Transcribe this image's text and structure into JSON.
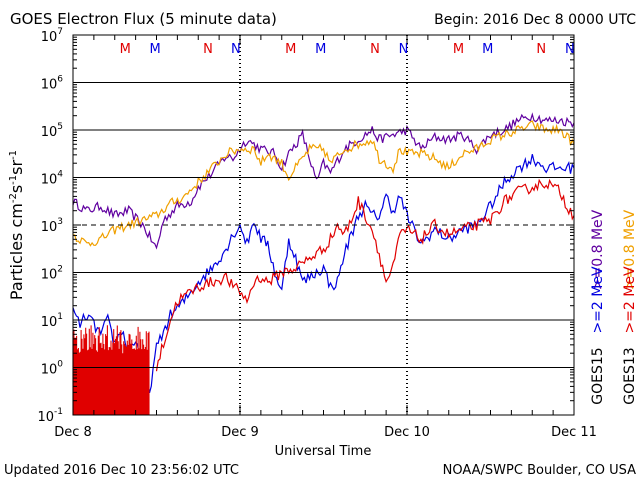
{
  "chart_data": {
    "type": "line",
    "title": "GOES Electron Flux (5 minute data)",
    "begin_label": "Begin: 2016 Dec 8 0000 UTC",
    "xlabel": "Universal Time",
    "ylabel_main": "Particles cm",
    "ylabel_sup1": "-2",
    "ylabel_mid1": "s",
    "ylabel_sup2": "-1",
    "ylabel_mid2": "sr",
    "ylabel_sup3": "-1",
    "footer_left": "Updated 2016 Dec 10 23:56:02 UTC",
    "footer_right": "NOAA/SWPC Boulder, CO USA",
    "x_range_hours": [
      0,
      72
    ],
    "x_ticks": [
      {
        "label": "Dec 8",
        "hour": 0
      },
      {
        "label": "Dec 9",
        "hour": 24
      },
      {
        "label": "Dec 10",
        "hour": 48
      },
      {
        "label": "Dec 11",
        "hour": 72
      }
    ],
    "y_log_range": [
      -1,
      7
    ],
    "y_ticks": [
      {
        "base": "10",
        "exp": "7"
      },
      {
        "base": "10",
        "exp": "6"
      },
      {
        "base": "10",
        "exp": "5"
      },
      {
        "base": "10",
        "exp": "4"
      },
      {
        "base": "10",
        "exp": "3"
      },
      {
        "base": "10",
        "exp": "2"
      },
      {
        "base": "10",
        "exp": "1"
      },
      {
        "base": "10",
        "exp": "0"
      },
      {
        "base": "10",
        "exp": "-1"
      }
    ],
    "reference_lines": [
      6,
      5,
      4,
      2,
      1,
      0
    ],
    "dashed_line": 3,
    "markers": [
      {
        "label": "M",
        "hour": 7.5,
        "color": "#e00000"
      },
      {
        "label": "M",
        "hour": 11.8,
        "color": "#0000e0"
      },
      {
        "label": "N",
        "hour": 19.4,
        "color": "#e00000"
      },
      {
        "label": "N",
        "hour": 23.4,
        "color": "#0000e0"
      },
      {
        "label": "M",
        "hour": 31.3,
        "color": "#e00000"
      },
      {
        "label": "M",
        "hour": 35.6,
        "color": "#0000e0"
      },
      {
        "label": "N",
        "hour": 43.4,
        "color": "#e00000"
      },
      {
        "label": "N",
        "hour": 47.5,
        "color": "#0000e0"
      },
      {
        "label": "M",
        "hour": 55.4,
        "color": "#e00000"
      },
      {
        "label": "M",
        "hour": 59.6,
        "color": "#0000e0"
      },
      {
        "label": "N",
        "hour": 67.3,
        "color": "#e00000"
      },
      {
        "label": "N",
        "hour": 71.4,
        "color": "#0000e0"
      }
    ],
    "legend": [
      {
        "text": ">=0.8 MeV",
        "color": "#f0a000"
      },
      {
        "text": ">=0.8 MeV",
        "color": "#6000a0"
      },
      {
        "text": ">=2 MeV",
        "color": "#e00000"
      },
      {
        "text": ">=2 MeV",
        "color": "#0000e0"
      },
      {
        "text": "GOES13",
        "color": "#000000"
      },
      {
        "text": "GOES15",
        "color": "#000000"
      }
    ],
    "legend_colors": {
      "goes13": "#000000",
      "goes15": "#000000"
    },
    "series": [
      {
        "name": "GOES15 >=0.8 MeV",
        "color": "#6000a0",
        "noise": 0.1,
        "points": [
          [
            0,
            3.5
          ],
          [
            2,
            3.3
          ],
          [
            4,
            3.4
          ],
          [
            6,
            3.2
          ],
          [
            8,
            3.3
          ],
          [
            10,
            3.0
          ],
          [
            12,
            2.5
          ],
          [
            13,
            3.1
          ],
          [
            15,
            3.4
          ],
          [
            17,
            3.5
          ],
          [
            18,
            3.8
          ],
          [
            20,
            4.1
          ],
          [
            22,
            4.45
          ],
          [
            23,
            4.4
          ],
          [
            25,
            4.8
          ],
          [
            27,
            4.6
          ],
          [
            29,
            4.5
          ],
          [
            30,
            4.2
          ],
          [
            31,
            4.5
          ],
          [
            33,
            4.9
          ],
          [
            34,
            4.4
          ],
          [
            35,
            3.9
          ],
          [
            36,
            4.3
          ],
          [
            37,
            4.1
          ],
          [
            39,
            4.6
          ],
          [
            41,
            4.8
          ],
          [
            43,
            5.0
          ],
          [
            44,
            4.8
          ],
          [
            46,
            4.9
          ],
          [
            48,
            5.0
          ],
          [
            50,
            4.6
          ],
          [
            52,
            4.85
          ],
          [
            54,
            4.8
          ],
          [
            56,
            4.9
          ],
          [
            58,
            4.6
          ],
          [
            60,
            4.9
          ],
          [
            62,
            5.0
          ],
          [
            64,
            5.2
          ],
          [
            66,
            5.3
          ],
          [
            68,
            5.2
          ],
          [
            70,
            5.2
          ],
          [
            72,
            5.15
          ]
        ]
      },
      {
        "name": "GOES13 >=0.8 MeV",
        "color": "#f0a000",
        "noise": 0.1,
        "points": [
          [
            0,
            2.8
          ],
          [
            2,
            2.6
          ],
          [
            4,
            2.7
          ],
          [
            6,
            2.9
          ],
          [
            8,
            3.0
          ],
          [
            10,
            3.1
          ],
          [
            12,
            3.2
          ],
          [
            14,
            3.45
          ],
          [
            16,
            3.6
          ],
          [
            18,
            3.9
          ],
          [
            20,
            4.2
          ],
          [
            22,
            4.5
          ],
          [
            24,
            4.6
          ],
          [
            26,
            4.6
          ],
          [
            27,
            4.3
          ],
          [
            28,
            4.5
          ],
          [
            30,
            4.3
          ],
          [
            31,
            4.0
          ],
          [
            32,
            4.2
          ],
          [
            34,
            4.6
          ],
          [
            36,
            4.6
          ],
          [
            37,
            4.3
          ],
          [
            39,
            4.6
          ],
          [
            41,
            4.7
          ],
          [
            43,
            4.8
          ],
          [
            44,
            4.4
          ],
          [
            46,
            4.2
          ],
          [
            47,
            4.6
          ],
          [
            48,
            4.5
          ],
          [
            50,
            4.5
          ],
          [
            52,
            4.4
          ],
          [
            54,
            4.2
          ],
          [
            56,
            4.5
          ],
          [
            58,
            4.6
          ],
          [
            60,
            4.8
          ],
          [
            62,
            4.9
          ],
          [
            64,
            5.0
          ],
          [
            66,
            5.1
          ],
          [
            68,
            5.0
          ],
          [
            70,
            5.0
          ],
          [
            72,
            4.7
          ]
        ]
      },
      {
        "name": "GOES15 >=2 MeV",
        "color": "#0000e0",
        "noise": 0.12,
        "points": [
          [
            0,
            1.2
          ],
          [
            1,
            0.9
          ],
          [
            2,
            1.1
          ],
          [
            3,
            0.9
          ],
          [
            4,
            0.7
          ],
          [
            5,
            1.0
          ],
          [
            6,
            0.5
          ],
          [
            7,
            0.8
          ],
          [
            8,
            0.3
          ],
          [
            9,
            0.6
          ],
          [
            10,
            0.0
          ],
          [
            11,
            -0.5
          ],
          [
            12,
            0.4
          ],
          [
            14,
            1.1
          ],
          [
            16,
            1.4
          ],
          [
            18,
            1.8
          ],
          [
            20,
            2.1
          ],
          [
            22,
            2.5
          ],
          [
            23,
            2.8
          ],
          [
            24,
            3.0
          ],
          [
            25,
            2.6
          ],
          [
            26,
            3.1
          ],
          [
            27,
            2.7
          ],
          [
            28,
            2.6
          ],
          [
            29,
            2.0
          ],
          [
            30,
            1.6
          ],
          [
            31,
            2.7
          ],
          [
            32,
            2.3
          ],
          [
            33,
            1.8
          ],
          [
            34,
            1.9
          ],
          [
            35,
            2.0
          ],
          [
            36,
            2.1
          ],
          [
            37,
            1.7
          ],
          [
            38,
            1.8
          ],
          [
            39,
            2.4
          ],
          [
            40,
            2.8
          ],
          [
            41,
            3.2
          ],
          [
            42,
            3.4
          ],
          [
            43,
            3.2
          ],
          [
            44,
            3.2
          ],
          [
            45,
            3.6
          ],
          [
            46,
            3.3
          ],
          [
            47,
            3.6
          ],
          [
            48,
            3.2
          ],
          [
            50,
            2.6
          ],
          [
            52,
            2.9
          ],
          [
            54,
            2.7
          ],
          [
            56,
            2.9
          ],
          [
            58,
            3.0
          ],
          [
            60,
            3.4
          ],
          [
            62,
            3.9
          ],
          [
            64,
            4.2
          ],
          [
            66,
            4.4
          ],
          [
            68,
            4.2
          ],
          [
            70,
            4.2
          ],
          [
            72,
            4.2
          ]
        ]
      },
      {
        "name": "GOES13 >=2 MeV",
        "color": "#e00000",
        "noise": 0.12,
        "points": [
          [
            12,
            0.0
          ],
          [
            13,
            0.5
          ],
          [
            14,
            1.0
          ],
          [
            15,
            1.4
          ],
          [
            16,
            1.5
          ],
          [
            18,
            1.7
          ],
          [
            20,
            1.8
          ],
          [
            22,
            1.9
          ],
          [
            23,
            1.7
          ],
          [
            24,
            1.6
          ],
          [
            25,
            1.4
          ],
          [
            26,
            1.8
          ],
          [
            27,
            1.9
          ],
          [
            28,
            1.8
          ],
          [
            30,
            2.0
          ],
          [
            32,
            2.1
          ],
          [
            34,
            2.3
          ],
          [
            36,
            2.5
          ],
          [
            37,
            2.7
          ],
          [
            38,
            3.0
          ],
          [
            39,
            2.8
          ],
          [
            40,
            3.1
          ],
          [
            41,
            3.5
          ],
          [
            42,
            3.2
          ],
          [
            43,
            2.9
          ],
          [
            44,
            2.4
          ],
          [
            45,
            1.8
          ],
          [
            46,
            2.1
          ],
          [
            47,
            2.8
          ],
          [
            48,
            2.9
          ],
          [
            50,
            2.7
          ],
          [
            52,
            3.0
          ],
          [
            54,
            2.8
          ],
          [
            56,
            2.9
          ],
          [
            58,
            3.0
          ],
          [
            60,
            3.1
          ],
          [
            62,
            3.5
          ],
          [
            64,
            3.7
          ],
          [
            66,
            3.8
          ],
          [
            68,
            3.9
          ],
          [
            70,
            3.7
          ],
          [
            71,
            3.4
          ],
          [
            72,
            3.2
          ]
        ]
      }
    ],
    "red_spike_region": {
      "start_hour": 0,
      "end_hour": 11,
      "low": -1.5,
      "high": 0.9
    }
  }
}
